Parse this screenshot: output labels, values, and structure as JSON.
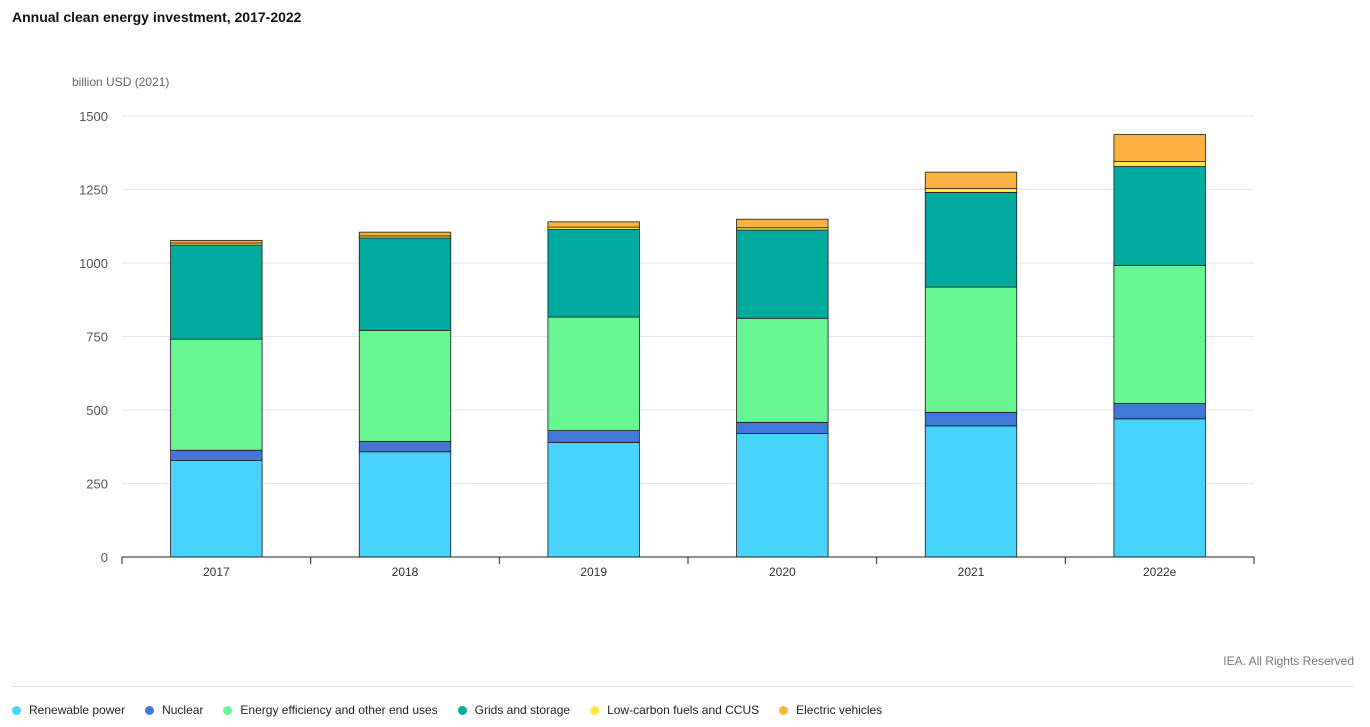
{
  "title": "Annual clean energy investment, 2017-2022",
  "credit": "IEA. All Rights Reserved",
  "chart_data": {
    "type": "bar",
    "stacked": true,
    "unit_label": "billion USD (2021)",
    "categories": [
      "2017",
      "2018",
      "2019",
      "2020",
      "2021",
      "2022e"
    ],
    "ylim": [
      0,
      1500
    ],
    "yticks": [
      0,
      250,
      500,
      750,
      1000,
      1250,
      1500
    ],
    "grid": true,
    "legend_position": "bottom",
    "series": [
      {
        "name": "Renewable power",
        "color": "#47d3fc",
        "values": [
          328,
          358,
          390,
          420,
          446,
          470
        ]
      },
      {
        "name": "Nuclear",
        "color": "#3f78d6",
        "values": [
          35,
          35,
          40,
          38,
          46,
          52
        ]
      },
      {
        "name": "Energy efficiency and other end uses",
        "color": "#69f591",
        "values": [
          378,
          378,
          386,
          354,
          426,
          470
        ]
      },
      {
        "name": "Grids and storage",
        "color": "#00ab9e",
        "values": [
          320,
          314,
          298,
          300,
          322,
          336
        ]
      },
      {
        "name": "Low-carbon fuels and CCUS",
        "color": "#fde93f",
        "values": [
          7,
          7,
          8,
          8,
          13,
          17
        ]
      },
      {
        "name": "Electric vehicles",
        "color": "#fcb242",
        "values": [
          9,
          13,
          18,
          29,
          56,
          92
        ]
      }
    ]
  }
}
